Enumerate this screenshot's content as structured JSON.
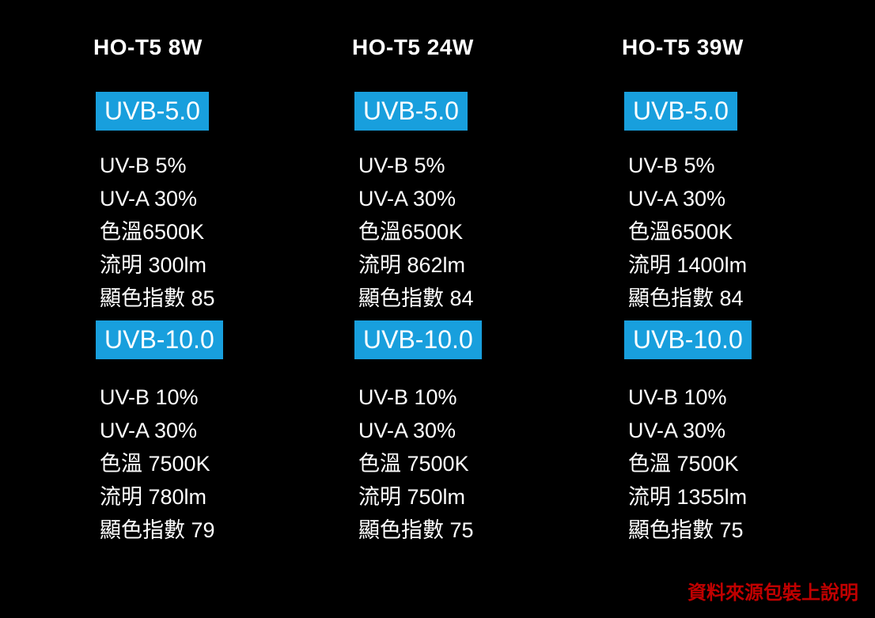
{
  "colors": {
    "bg": "#000000",
    "accent_blue": "#189FDD",
    "text_white": "#FFFFFF",
    "footer_red": "#C00000"
  },
  "columns": [
    {
      "title": "HO-T5 8W",
      "sections": [
        {
          "badge": "UVB-5.0",
          "specs": [
            "UV-B 5%",
            "UV-A 30%",
            "色溫6500K",
            "流明 300lm",
            "顯色指數 85"
          ]
        },
        {
          "badge": "UVB-10.0",
          "specs": [
            "UV-B 10%",
            "UV-A 30%",
            "色溫 7500K",
            "流明 780lm",
            "顯色指數 79"
          ]
        }
      ]
    },
    {
      "title": "HO-T5 24W",
      "sections": [
        {
          "badge": "UVB-5.0",
          "specs": [
            "UV-B 5%",
            "UV-A 30%",
            "色溫6500K",
            "流明 862lm",
            "顯色指數 84"
          ]
        },
        {
          "badge": "UVB-10.0",
          "specs": [
            "UV-B 10%",
            "UV-A 30%",
            "色溫 7500K",
            "流明 750lm",
            "顯色指數 75"
          ]
        }
      ]
    },
    {
      "title": "HO-T5 39W",
      "sections": [
        {
          "badge": "UVB-5.0",
          "specs": [
            "UV-B 5%",
            "UV-A 30%",
            "色溫6500K",
            "流明 1400lm",
            "顯色指數 84"
          ]
        },
        {
          "badge": "UVB-10.0",
          "specs": [
            "UV-B 10%",
            "UV-A 30%",
            "色溫 7500K",
            "流明 1355lm",
            "顯色指數 75"
          ]
        }
      ]
    }
  ],
  "footer": {
    "source_note": "資料來源包裝上說明"
  }
}
